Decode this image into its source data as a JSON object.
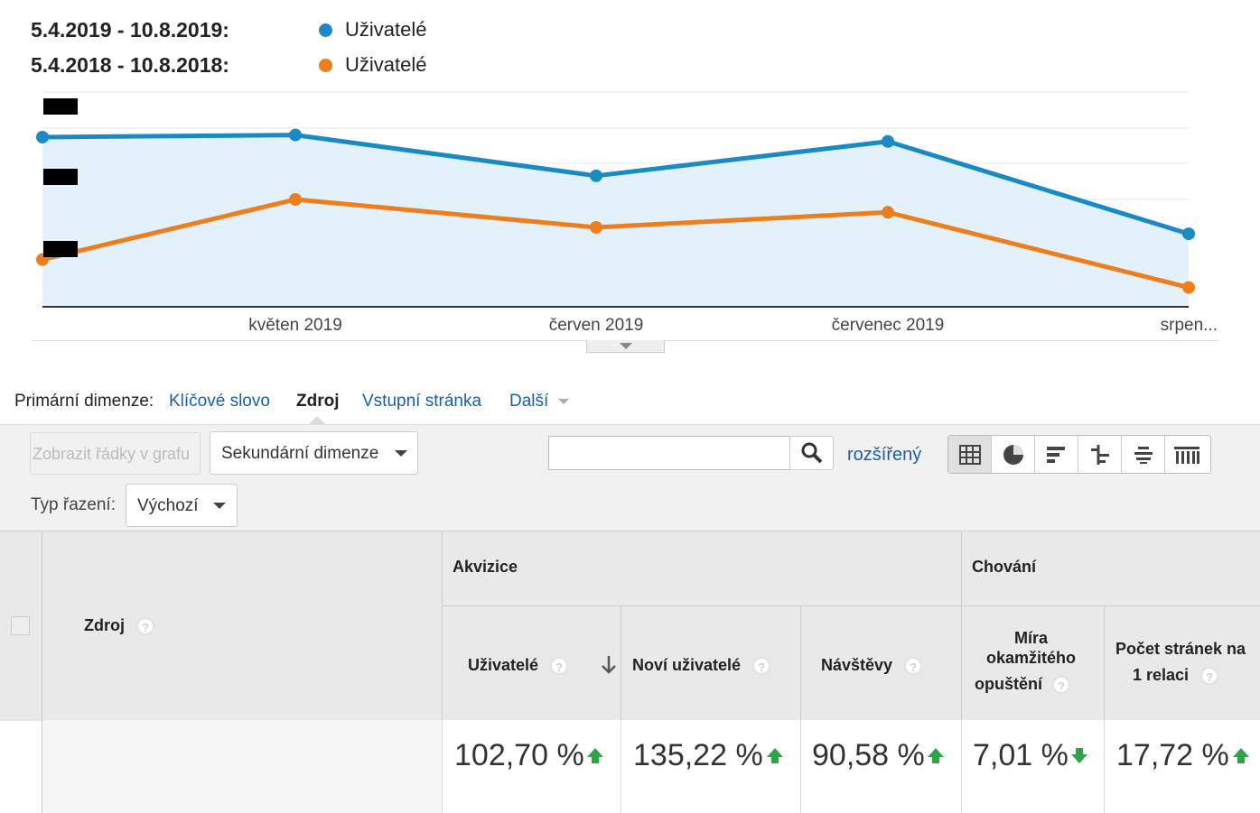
{
  "legend": {
    "range_current": "5.4.2019 - 10.8.2019:",
    "range_previous": "5.4.2018 - 10.8.2018:",
    "series_current": "Uživatelé",
    "series_previous": "Uživatelé",
    "color_current": "#1a8ac7",
    "color_previous": "#ee7d1c"
  },
  "chart_data": {
    "type": "line",
    "x": [
      "",
      "květen 2019",
      "červen 2019",
      "červenec 2019",
      "srpen..."
    ],
    "series": [
      {
        "name": "Uživatelé",
        "values": [
          0.79,
          0.8,
          0.61,
          0.77,
          0.34
        ]
      },
      {
        "name": "Uživatelé",
        "values": [
          0.22,
          0.5,
          0.37,
          0.44,
          0.09
        ]
      }
    ],
    "y_tick_labels_redacted": true,
    "grid": true,
    "area_fill": true
  },
  "dimensions": {
    "label": "Primární dimenze:",
    "items": [
      "Klíčové slovo",
      "Zdroj",
      "Vstupní stránka",
      "Další"
    ],
    "active": "Zdroj"
  },
  "toolbar": {
    "plot_rows": "Zobrazit řádky v grafu",
    "secondary_dimension": "Sekundární dimenze",
    "search_value": "",
    "advanced": "rozšířený",
    "sort_label": "Typ řazení:",
    "sort_value": "Výchozí"
  },
  "table": {
    "dim_header": "Zdroj",
    "group_acquisition": "Akvizice",
    "group_behavior": "Chování",
    "col_users": "Uživatelé",
    "col_new_users": "Noví uživatelé",
    "col_sessions": "Návštěvy",
    "col_bounce_1": "Míra",
    "col_bounce_2": "okamžitého",
    "col_bounce_3": "opuštění",
    "col_pages_1": "Počet stránek na",
    "col_pages_2": "1 relaci",
    "help": "?",
    "totals": {
      "users": "102,70 %",
      "new_users": "135,22 %",
      "sessions": "90,58 %",
      "bounce": "7,01 %",
      "pages": "17,72 %"
    },
    "trend": {
      "users": "up",
      "new_users": "up",
      "sessions": "up",
      "bounce": "down",
      "pages": "up"
    }
  }
}
